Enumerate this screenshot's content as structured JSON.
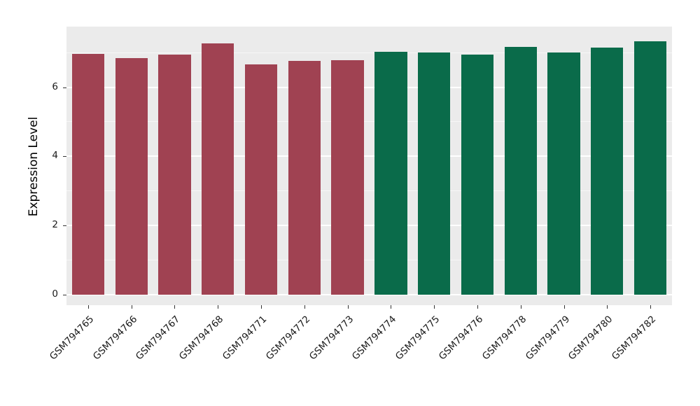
{
  "chart_data": {
    "type": "bar",
    "title": "",
    "xlabel": "",
    "ylabel": "Expression Level",
    "categories": [
      "GSM794765",
      "GSM794766",
      "GSM794767",
      "GSM794768",
      "GSM794771",
      "GSM794772",
      "GSM794773",
      "GSM794774",
      "GSM794775",
      "GSM794776",
      "GSM794778",
      "GSM794779",
      "GSM794780",
      "GSM794782"
    ],
    "values": [
      6.97,
      6.83,
      6.94,
      7.27,
      6.65,
      6.76,
      6.77,
      7.02,
      7.01,
      6.95,
      7.17,
      7.0,
      7.15,
      7.32
    ],
    "bar_colors": [
      "#A04252",
      "#A04252",
      "#A04252",
      "#A04252",
      "#A04252",
      "#A04252",
      "#A04252",
      "#0A6B4A",
      "#0A6B4A",
      "#0A6B4A",
      "#0A6B4A",
      "#0A6B4A",
      "#0A6B4A",
      "#0A6B4A"
    ],
    "ylim": [
      -0.3,
      7.75
    ],
    "yticks": [
      0,
      2,
      4,
      6
    ],
    "yticks_minor": [
      1,
      3,
      5,
      7
    ],
    "grid": "horizontal",
    "legend": "none",
    "x_label_rotation": 45,
    "panel_background": "#EBEBEB",
    "gridline_color": "#FFFFFF"
  }
}
